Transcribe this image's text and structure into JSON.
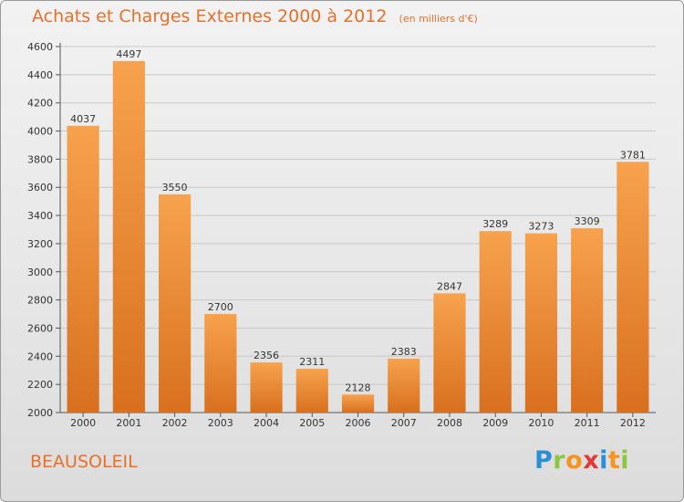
{
  "header": {
    "title": "Achats et Charges Externes 2000 à 2012",
    "subtitle": "(en milliers d'€)"
  },
  "footer": {
    "city": "BEAUSOLEIL",
    "logo": {
      "letters": [
        "P",
        "r",
        "o",
        "x",
        "i",
        "t",
        "i"
      ],
      "colors": [
        "#2a8fd6",
        "#8cc63f",
        "#f7941d",
        "#e53935",
        "#2a8fd6",
        "#f7941d",
        "#8cc63f"
      ]
    }
  },
  "chart_data": {
    "type": "bar",
    "title": "Achats et Charges Externes 2000 à 2012",
    "subtitle": "(en milliers d'€)",
    "categories": [
      "2000",
      "2001",
      "2002",
      "2003",
      "2004",
      "2005",
      "2006",
      "2007",
      "2008",
      "2009",
      "2010",
      "2011",
      "2012"
    ],
    "values": [
      4037,
      4497,
      3550,
      2700,
      2356,
      2311,
      2128,
      2383,
      2847,
      3289,
      3273,
      3309,
      3781
    ],
    "ylim": [
      2000,
      4600
    ],
    "yticks": [
      2000,
      2200,
      2400,
      2600,
      2800,
      3000,
      3200,
      3400,
      3600,
      3800,
      4000,
      4200,
      4400,
      4600
    ],
    "grid": true,
    "bar_color_top": "#f7a24e",
    "bar_color_bottom": "#d8701e",
    "xlabel": "",
    "ylabel": ""
  }
}
